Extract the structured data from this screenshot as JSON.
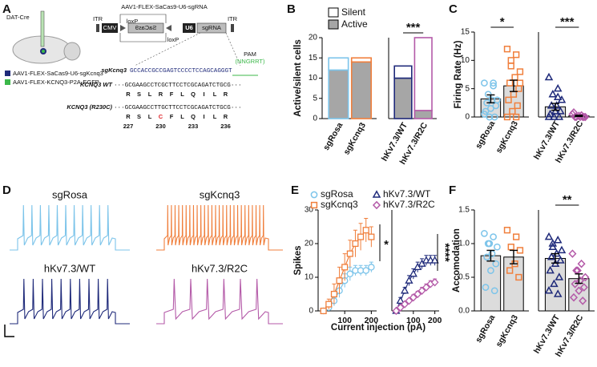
{
  "panel_labels": [
    "A",
    "B",
    "C",
    "D",
    "E",
    "F"
  ],
  "diagram": {
    "mouse_label": "DAT-Cre",
    "vector_title": "AAV1-FLEX-SaCas9-U6-sgRNA",
    "itr": "ITR",
    "promoter": "CMV",
    "lox": "loxP",
    "cas": "SaCas9",
    "u6": "U6",
    "guide": "sgRNA",
    "legend": [
      {
        "text": "AAV1-FLEX-SaCas9-U6-sgKcnq3",
        "color": "#1f2a7a"
      },
      {
        "text": "AAV1-FLEX-KCNQ3-P2A-EGFP",
        "color": "#3cb84a"
      }
    ],
    "pam": "PAM",
    "pam_seq": "(NNGRRT)",
    "sg_label": "sgKcnq3",
    "sg_seq": "GCCACCGCCGAGTCCCCTCCAGCAGGGT",
    "wt_label": "KCNQ3 WT",
    "wt_seq": "···GCGAAGCCTCGCTTCCTCGCAGATCTGCG···",
    "wt_aa": [
      "R",
      "S",
      "L",
      "R",
      "F",
      "L",
      "Q",
      "I",
      "L",
      "R"
    ],
    "mut_label": "KCNQ3 (R230C)",
    "mut_seq": "···GCGAAGCCTTGCTTCCTCGCAGATCTGCG···",
    "mut_aa": [
      "R",
      "S",
      "L",
      "C",
      "F",
      "L",
      "Q",
      "I",
      "L",
      "R"
    ],
    "positions": [
      227,
      230,
      233,
      236
    ]
  },
  "traces": [
    {
      "label": "sgRosa",
      "color": "#7cc4ea",
      "spikes": 11
    },
    {
      "label": "sgKcnq3",
      "color": "#f07f3c",
      "spikes": 27
    },
    {
      "label": "hKv7.3/WT",
      "color": "#1f2a7a",
      "spikes": 10
    },
    {
      "label": "hKv7.3/R2C",
      "color": "#b45aa8",
      "spikes": 6
    }
  ],
  "chart_data": [
    {
      "type": "stacked_bar",
      "ylabel": "Active/silent cells",
      "categories": [
        "sgRosa",
        "sgKcnq3",
        "hKv7.3/WT",
        "hKv7.3/R2C"
      ],
      "category_colors": [
        "#7cc4ea",
        "#f07f3c",
        "#1f2a7a",
        "#b45aa8"
      ],
      "series": [
        {
          "name": "Active",
          "color": "#a6a6a6",
          "values": [
            12,
            14,
            10,
            2
          ]
        },
        {
          "name": "Silent",
          "color": "#ffffff",
          "values": [
            3,
            1,
            3,
            18
          ]
        }
      ],
      "ylim": [
        0,
        20
      ],
      "yticks": [
        0,
        5,
        10,
        15,
        20
      ],
      "annotations": [
        "***"
      ]
    },
    {
      "type": "bar",
      "ylabel": "Firing Rate (Hz)",
      "categories": [
        "sgRosa",
        "sgKcnq3",
        "hKv7.3/WT",
        "hKv7.3/R2C"
      ],
      "category_colors": [
        "#7cc4ea",
        "#f07f3c",
        "#1f2a7a",
        "#b45aa8"
      ],
      "markers": [
        "circle",
        "square",
        "triangle",
        "diamond"
      ],
      "color": "#dcdcdc",
      "values": [
        3.2,
        5.5,
        1.8,
        0.2
      ],
      "errors": [
        0.7,
        1.0,
        0.6,
        0.1
      ],
      "points": [
        [
          6,
          5.5,
          4,
          3,
          3,
          2.5,
          2,
          1.5,
          1,
          0,
          0,
          0.5,
          6
        ],
        [
          12,
          11,
          10,
          8,
          7,
          6,
          5,
          4,
          3,
          2,
          1,
          0,
          0,
          9,
          6
        ],
        [
          7,
          5,
          4,
          3,
          2,
          2,
          1,
          1,
          0.5,
          0,
          0,
          0,
          3.5
        ],
        [
          0.5,
          0.3,
          0,
          0,
          0,
          0,
          0,
          0.2,
          0.8,
          0
        ]
      ],
      "ylim": [
        0,
        15
      ],
      "yticks": [
        0,
        5,
        10,
        15
      ],
      "annotations": [
        "*",
        "***"
      ]
    },
    {
      "type": "line",
      "ylabel": "Spikes",
      "xlabel": "Current injection (pA)",
      "x": [
        20,
        40,
        60,
        80,
        100,
        120,
        140,
        160,
        180,
        200
      ],
      "series": [
        {
          "name": "sgRosa",
          "color": "#7cc4ea",
          "marker": "circle",
          "values": [
            0,
            1,
            3,
            6,
            9,
            11,
            12,
            12,
            12,
            13
          ],
          "errors": [
            0,
            1,
            1.5,
            2,
            2,
            2,
            1.5,
            1.5,
            1.5,
            1.5
          ]
        },
        {
          "name": "sgKcnq3",
          "color": "#f07f3c",
          "marker": "square",
          "values": [
            0,
            2,
            5,
            9,
            13,
            17,
            20,
            22,
            24,
            22
          ],
          "errors": [
            0,
            1.5,
            3,
            4,
            4,
            4,
            4,
            4,
            3.5,
            3
          ]
        }
      ],
      "xlim": [
        0,
        220
      ],
      "xticks": [
        100,
        200
      ],
      "ylim": [
        0,
        30
      ],
      "yticks": [
        0,
        10,
        20,
        30
      ],
      "annotations": [
        "*"
      ]
    },
    {
      "type": "line",
      "x": [
        20,
        40,
        60,
        80,
        100,
        120,
        140,
        160,
        180,
        200
      ],
      "series": [
        {
          "name": "hKv7.3/WT",
          "color": "#1f2a7a",
          "marker": "triangle",
          "values": [
            0,
            3,
            6,
            9,
            11,
            13,
            14,
            15,
            15,
            15
          ],
          "errors": [
            0,
            1,
            1,
            1.5,
            1.5,
            1.5,
            1.5,
            1.5,
            1.5,
            1.5
          ]
        },
        {
          "name": "hKv7.3/R2C",
          "color": "#b45aa8",
          "marker": "diamond",
          "values": [
            0,
            1,
            2,
            3,
            4,
            5,
            6,
            7,
            8,
            8.5
          ],
          "errors": [
            0,
            0.5,
            0.5,
            0.5,
            0.8,
            0.8,
            1,
            1,
            1,
            1
          ]
        }
      ],
      "xlim": [
        0,
        220
      ],
      "xticks": [
        100,
        200
      ],
      "ylim": [
        0,
        30
      ],
      "annotations": [
        "****"
      ]
    },
    {
      "type": "bar",
      "ylabel": "Accomodation",
      "categories": [
        "sgRosa",
        "sgKcnq3",
        "hKv7.3/WT",
        "hKv7.3/R2C"
      ],
      "category_colors": [
        "#7cc4ea",
        "#f07f3c",
        "#1f2a7a",
        "#b45aa8"
      ],
      "markers": [
        "circle",
        "square",
        "triangle",
        "diamond"
      ],
      "color": "#dcdcdc",
      "values": [
        0.82,
        0.8,
        0.78,
        0.48
      ],
      "errors": [
        0.08,
        0.1,
        0.07,
        0.07
      ],
      "points": [
        [
          1.15,
          1.1,
          1.0,
          0.95,
          0.85,
          0.8,
          0.7,
          0.6,
          0.35,
          0.3,
          1.0
        ],
        [
          1.2,
          1.1,
          0.95,
          0.9,
          0.7,
          0.6,
          0.5
        ],
        [
          1.1,
          1.05,
          1.0,
          0.9,
          0.85,
          0.8,
          0.75,
          0.7,
          0.6,
          0.5,
          0.4,
          0.3,
          0.25,
          0.95
        ],
        [
          0.85,
          0.7,
          0.6,
          0.5,
          0.45,
          0.4,
          0.35,
          0.3,
          0.2,
          0.15,
          0.6
        ]
      ],
      "ylim": [
        0,
        1.5
      ],
      "yticks": [
        {
          "value": 0,
          "label": "0.0"
        },
        {
          "value": 0.5,
          "label": "0.5"
        },
        {
          "value": 1,
          "label": "1.0"
        },
        {
          "value": 1.5,
          "label": "1.5"
        }
      ],
      "annotations": [
        "**"
      ]
    }
  ]
}
